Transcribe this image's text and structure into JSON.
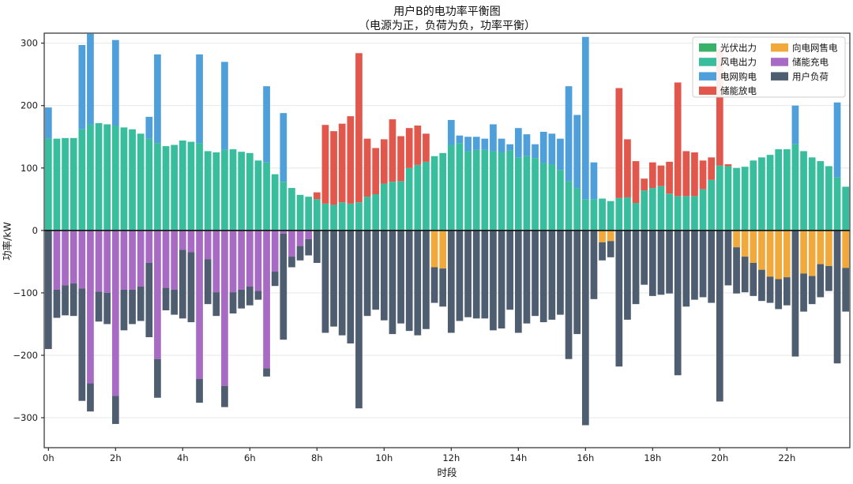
{
  "title": {
    "line1": "用户B的电功率平衡图",
    "line2": "（电源为正，负荷为负，功率平衡）"
  },
  "axes": {
    "y_label": "功率/kW",
    "x_label": "时段",
    "y_ticks": [
      300,
      200,
      100,
      0,
      -100,
      -200,
      -300
    ],
    "x_tick_labels": [
      "0h",
      "2h",
      "4h",
      "6h",
      "8h",
      "10h",
      "12h",
      "14h",
      "16h",
      "18h",
      "20h",
      "22h"
    ],
    "x_tick_indices": [
      0,
      8,
      16,
      24,
      32,
      40,
      48,
      56,
      64,
      72,
      80,
      88
    ],
    "y_max": 316,
    "y_min": -348,
    "grid": true
  },
  "colors": {
    "pv": "#39b168",
    "wind": "#38bd9d",
    "grid_buy": "#4f9fda",
    "discharge": "#e2574c",
    "sell": "#f2a93c",
    "charge": "#a76bc4",
    "load": "#4e5d6f",
    "grid_line": "#e9e9e9",
    "zero_line": "#1a1a1a",
    "frame": "#2b2b2b",
    "legend_border": "#cccccc"
  },
  "legend": {
    "position": "upper right",
    "columns": [
      [
        {
          "key": "pv",
          "label": "光伏出力"
        },
        {
          "key": "wind",
          "label": "风电出力"
        },
        {
          "key": "grid_buy",
          "label": "电网购电"
        },
        {
          "key": "discharge",
          "label": "储能放电"
        }
      ],
      [
        {
          "key": "sell",
          "label": "向电网售电"
        },
        {
          "key": "charge",
          "label": "储能充电"
        },
        {
          "key": "load",
          "label": "用户负荷"
        }
      ]
    ]
  },
  "chart_data": {
    "type": "bar",
    "stacked": true,
    "n_points": 96,
    "time_step": "15min",
    "positive_stack_order": [
      "pv",
      "wind",
      "grid_buy",
      "discharge"
    ],
    "negative_stack_order": [
      "sell",
      "charge",
      "load"
    ],
    "series": [
      {
        "name": "光伏出力",
        "key": "pv",
        "sign": 1,
        "values": [
          0,
          0,
          0,
          0,
          0,
          0,
          0,
          0,
          0,
          0,
          0,
          0,
          0,
          0,
          0,
          0,
          0,
          0,
          0,
          0,
          0,
          0,
          0,
          0,
          0,
          0,
          0,
          0,
          0,
          0,
          0,
          0,
          0,
          0,
          0,
          0,
          0,
          0,
          0,
          0,
          0,
          0,
          0,
          0,
          0,
          0,
          0,
          0,
          0,
          0,
          0,
          0,
          0,
          0,
          0,
          0,
          0,
          0,
          0,
          0,
          0,
          0,
          0,
          0,
          0,
          0,
          0,
          0,
          0,
          0,
          0,
          0,
          0,
          0,
          0,
          0,
          0,
          0,
          0,
          0,
          0,
          0,
          0,
          0,
          0,
          0,
          0,
          0,
          0,
          0,
          0,
          0,
          0,
          0,
          0,
          0
        ]
      },
      {
        "name": "风电出力",
        "key": "wind",
        "sign": 1,
        "values": [
          147,
          147,
          148,
          148,
          162,
          170,
          172,
          170,
          168,
          165,
          162,
          155,
          147,
          140,
          135,
          137,
          144,
          142,
          140,
          127,
          125,
          129,
          130,
          126,
          124,
          112,
          109,
          90,
          78,
          68,
          57,
          54,
          50,
          43,
          41,
          45,
          43,
          45,
          54,
          58,
          75,
          78,
          79,
          100,
          105,
          110,
          119,
          124,
          137,
          140,
          127,
          129,
          129,
          127,
          125,
          128,
          117,
          119,
          116,
          108,
          106,
          97,
          79,
          68,
          50,
          50,
          51,
          47,
          52,
          53,
          44,
          64,
          68,
          71,
          59,
          55,
          55,
          55,
          66,
          81,
          104,
          103,
          100,
          102,
          112,
          117,
          121,
          130,
          130,
          138,
          127,
          117,
          111,
          103,
          85,
          70
        ]
      },
      {
        "name": "电网购电",
        "key": "grid_buy",
        "sign": 1,
        "values": [
          50,
          0,
          0,
          0,
          135,
          145,
          0,
          0,
          137,
          0,
          0,
          0,
          35,
          142,
          0,
          0,
          0,
          0,
          142,
          0,
          0,
          141,
          0,
          0,
          0,
          0,
          122,
          0,
          110,
          0,
          0,
          0,
          0,
          0,
          0,
          0,
          0,
          0,
          0,
          0,
          0,
          0,
          0,
          0,
          0,
          0,
          0,
          0,
          40,
          12,
          23,
          21,
          18,
          43,
          22,
          10,
          47,
          35,
          22,
          50,
          49,
          50,
          152,
          117,
          260,
          59,
          0,
          0,
          0,
          0,
          0,
          0,
          0,
          0,
          0,
          0,
          0,
          0,
          0,
          0,
          0,
          0,
          0,
          0,
          0,
          0,
          0,
          0,
          0,
          62,
          0,
          0,
          0,
          0,
          120,
          0
        ]
      },
      {
        "name": "储能放电",
        "key": "discharge",
        "sign": 1,
        "values": [
          0,
          0,
          0,
          0,
          0,
          0,
          0,
          0,
          0,
          0,
          0,
          0,
          0,
          0,
          0,
          0,
          0,
          0,
          0,
          0,
          0,
          0,
          0,
          0,
          0,
          0,
          0,
          0,
          0,
          0,
          0,
          0,
          11,
          126,
          118,
          126,
          140,
          239,
          93,
          74,
          71,
          100,
          72,
          64,
          63,
          45,
          0,
          0,
          0,
          0,
          0,
          0,
          0,
          0,
          0,
          0,
          0,
          0,
          0,
          0,
          0,
          0,
          0,
          0,
          0,
          0,
          0,
          0,
          176,
          93,
          67,
          19,
          41,
          33,
          51,
          182,
          72,
          70,
          46,
          36,
          187,
          3,
          0,
          0,
          0,
          0,
          0,
          0,
          0,
          0,
          0,
          0,
          0,
          0,
          0,
          0
        ]
      },
      {
        "name": "向电网售电",
        "key": "sell",
        "sign": -1,
        "values": [
          0,
          0,
          0,
          0,
          0,
          0,
          0,
          0,
          0,
          0,
          0,
          0,
          0,
          0,
          0,
          0,
          0,
          0,
          0,
          0,
          0,
          0,
          0,
          0,
          0,
          0,
          0,
          0,
          0,
          0,
          0,
          0,
          0,
          0,
          0,
          0,
          0,
          0,
          0,
          0,
          0,
          0,
          0,
          0,
          0,
          0,
          59,
          61,
          0,
          0,
          0,
          0,
          0,
          0,
          0,
          0,
          0,
          0,
          0,
          0,
          0,
          0,
          0,
          0,
          0,
          0,
          19,
          17,
          0,
          0,
          0,
          0,
          0,
          0,
          0,
          0,
          0,
          0,
          0,
          0,
          0,
          0,
          27,
          42,
          52,
          63,
          74,
          78,
          75,
          0,
          69,
          73,
          54,
          57,
          0,
          60
        ]
      },
      {
        "name": "储能充电",
        "key": "charge",
        "sign": -1,
        "values": [
          0,
          95,
          88,
          85,
          93,
          245,
          98,
          100,
          265,
          95,
          95,
          90,
          52,
          206,
          92,
          95,
          31,
          35,
          238,
          46,
          99,
          249,
          99,
          95,
          90,
          97,
          221,
          66,
          5,
          42,
          25,
          14,
          0,
          0,
          0,
          0,
          0,
          0,
          0,
          0,
          0,
          0,
          0,
          0,
          0,
          0,
          0,
          0,
          0,
          0,
          0,
          0,
          0,
          0,
          0,
          0,
          0,
          0,
          0,
          0,
          0,
          0,
          0,
          0,
          0,
          0,
          0,
          0,
          0,
          0,
          0,
          0,
          0,
          0,
          0,
          0,
          0,
          0,
          0,
          0,
          0,
          0,
          0,
          0,
          0,
          0,
          0,
          0,
          0,
          0,
          0,
          0,
          0,
          0,
          0,
          0
        ]
      },
      {
        "name": "用户负荷",
        "key": "load",
        "sign": -1,
        "values": [
          190,
          45,
          48,
          52,
          180,
          45,
          48,
          50,
          45,
          65,
          55,
          55,
          119,
          62,
          36,
          40,
          110,
          112,
          38,
          72,
          38,
          34,
          34,
          30,
          30,
          14,
          13,
          23,
          170,
          17,
          23,
          26,
          52,
          164,
          154,
          168,
          181,
          285,
          137,
          127,
          144,
          166,
          149,
          161,
          168,
          158,
          57,
          61,
          164,
          145,
          139,
          141,
          141,
          160,
          157,
          127,
          164,
          149,
          137,
          147,
          143,
          135,
          206,
          166,
          312,
          110,
          29,
          26,
          218,
          143,
          118,
          87,
          105,
          103,
          101,
          232,
          122,
          111,
          107,
          116,
          274,
          88,
          74,
          57,
          53,
          50,
          42,
          48,
          45,
          202,
          61,
          45,
          53,
          40,
          213,
          70
        ]
      }
    ]
  }
}
